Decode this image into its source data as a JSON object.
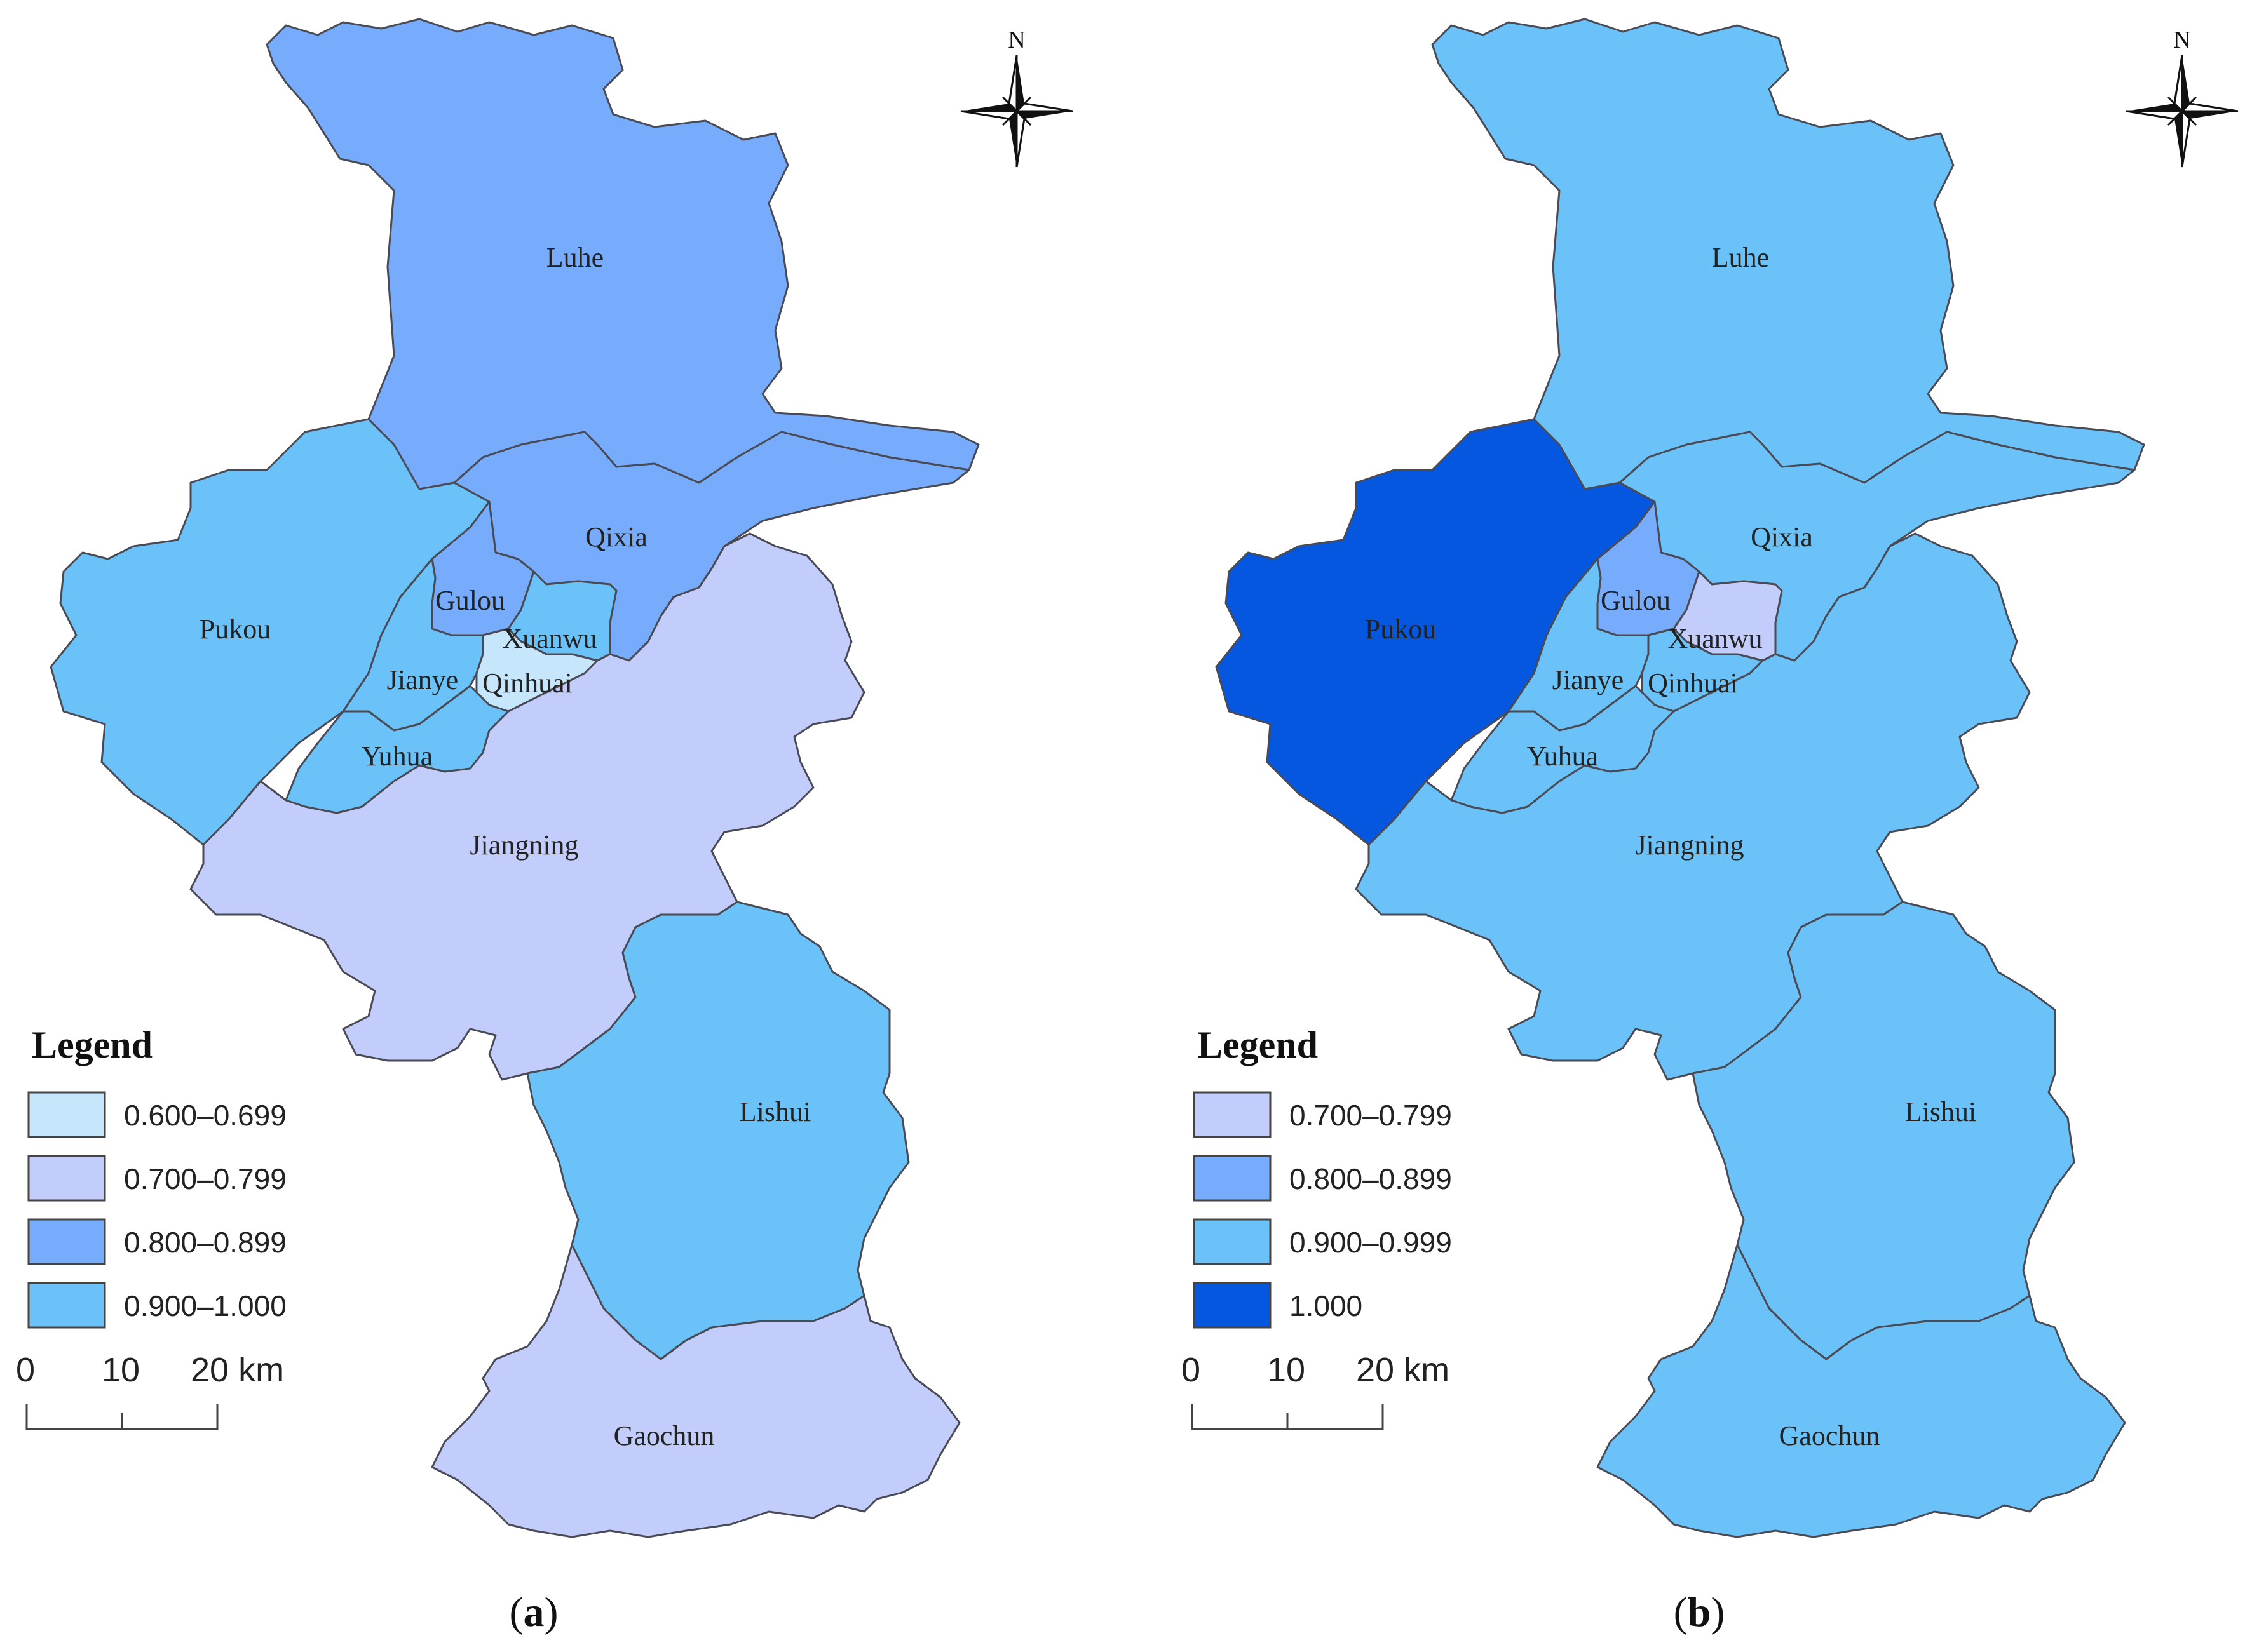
{
  "panels": [
    {
      "id": "a",
      "caption": "(a)",
      "caption_letter": "a",
      "north": "N",
      "legend": {
        "title": "Legend",
        "items": [
          {
            "label": "0.600–0.699",
            "color": "#c6e6fb"
          },
          {
            "label": "0.700–0.799",
            "color": "#c2cdfb"
          },
          {
            "label": "0.800–0.899",
            "color": "#76acfb"
          },
          {
            "label": "0.900–1.000",
            "color": "#6bc2f8"
          }
        ]
      },
      "scale": {
        "ticks": [
          "0",
          "10",
          "20 km"
        ]
      },
      "districts": {
        "luhe": {
          "name": "Luhe",
          "color": "#76acfb"
        },
        "pukou": {
          "name": "Pukou",
          "color": "#6bc2f8"
        },
        "qixia": {
          "name": "Qixia",
          "color": "#76acfb"
        },
        "gulou": {
          "name": "Gulou",
          "color": "#76acfb"
        },
        "xuanwu": {
          "name": "Xuanwu",
          "color": "#6bc2f8"
        },
        "jianye": {
          "name": "Jianye",
          "color": "#6bc2f8"
        },
        "qinhuai": {
          "name": "Qinhuai",
          "color": "#c6e6fb"
        },
        "yuhua": {
          "name": "Yuhua",
          "color": "#6bc2f8"
        },
        "jiangning": {
          "name": "Jiangning",
          "color": "#c2cdfb"
        },
        "lishui": {
          "name": "Lishui",
          "color": "#6bc2f8"
        },
        "gaochun": {
          "name": "Gaochun",
          "color": "#c2cdfb"
        }
      }
    },
    {
      "id": "b",
      "caption": "(b)",
      "caption_letter": "b",
      "north": "N",
      "legend": {
        "title": "Legend",
        "items": [
          {
            "label": "0.700–0.799",
            "color": "#c2cdfb"
          },
          {
            "label": "0.800–0.899",
            "color": "#76acfb"
          },
          {
            "label": "0.900–0.999",
            "color": "#6bc2f8"
          },
          {
            "label": "1.000",
            "color": "#0557e0"
          }
        ]
      },
      "scale": {
        "ticks": [
          "0",
          "10",
          "20 km"
        ]
      },
      "districts": {
        "luhe": {
          "name": "Luhe",
          "color": "#6bc2f8"
        },
        "pukou": {
          "name": "Pukou",
          "color": "#0557e0"
        },
        "qixia": {
          "name": "Qixia",
          "color": "#6bc2f8"
        },
        "gulou": {
          "name": "Gulou",
          "color": "#76acfb"
        },
        "xuanwu": {
          "name": "Xuanwu",
          "color": "#c2cdfb"
        },
        "jianye": {
          "name": "Jianye",
          "color": "#6bc2f8"
        },
        "qinhuai": {
          "name": "Qinhuai",
          "color": "#6bc2f8"
        },
        "yuhua": {
          "name": "Yuhua",
          "color": "#6bc2f8"
        },
        "jiangning": {
          "name": "Jiangning",
          "color": "#6bc2f8"
        },
        "lishui": {
          "name": "Lishui",
          "color": "#6bc2f8"
        },
        "gaochun": {
          "name": "Gaochun",
          "color": "#6bc2f8"
        }
      }
    }
  ]
}
